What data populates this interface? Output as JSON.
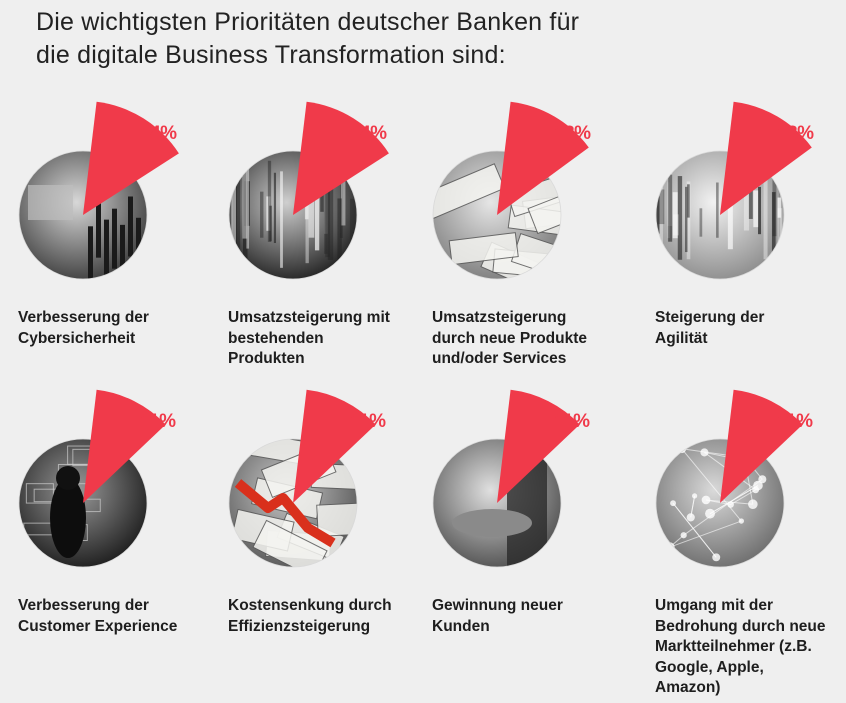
{
  "title": {
    "line1": "Die wichtigsten Prioritäten deutscher Banken für",
    "line2": "die digitale Business Transformation sind:"
  },
  "colors": {
    "accent": "#f03a4a",
    "background": "#efefef",
    "text": "#1e1e1e"
  },
  "chart_data": {
    "type": "pie",
    "unit": "%",
    "items": [
      {
        "label_lines": [
          "Verbesserung der",
          "Cybersicherheit"
        ],
        "value": 14,
        "value_label": "14%",
        "image": "security-circuit-photo"
      },
      {
        "label_lines": [
          "Umsatzsteigerung mit",
          "bestehenden",
          "Produkten"
        ],
        "value": 14,
        "value_label": "14%",
        "image": "binary-code-photo"
      },
      {
        "label_lines": [
          "Umsatzsteigerung",
          "durch neue Produkte",
          "und/oder Services"
        ],
        "value": 13,
        "value_label": "13%",
        "image": "dollar-bills-photo"
      },
      {
        "label_lines": [
          "Steigerung der",
          "Agilität"
        ],
        "value": 13,
        "value_label": "13%",
        "image": "skyscrapers-photo"
      },
      {
        "label_lines": [
          "Verbesserung der",
          "Customer Experience"
        ],
        "value": 11,
        "value_label": "11%",
        "image": "dashboard-person-photo"
      },
      {
        "label_lines": [
          "Kostensenkung durch",
          "Effizienzsteigerung"
        ],
        "value": 11,
        "value_label": "11%",
        "image": "money-falling-arrow-photo"
      },
      {
        "label_lines": [
          "Gewinnung neuer",
          "Kunden"
        ],
        "value": 11,
        "value_label": "11%",
        "image": "handshake-city-photo"
      },
      {
        "label_lines": [
          "Umgang mit der",
          "Bedrohung durch neue",
          "Marktteilnehmer (z.B.",
          "Google, Apple,",
          "Amazon)"
        ],
        "value": 11,
        "value_label": "11%",
        "image": "network-nodes-photo"
      }
    ]
  }
}
